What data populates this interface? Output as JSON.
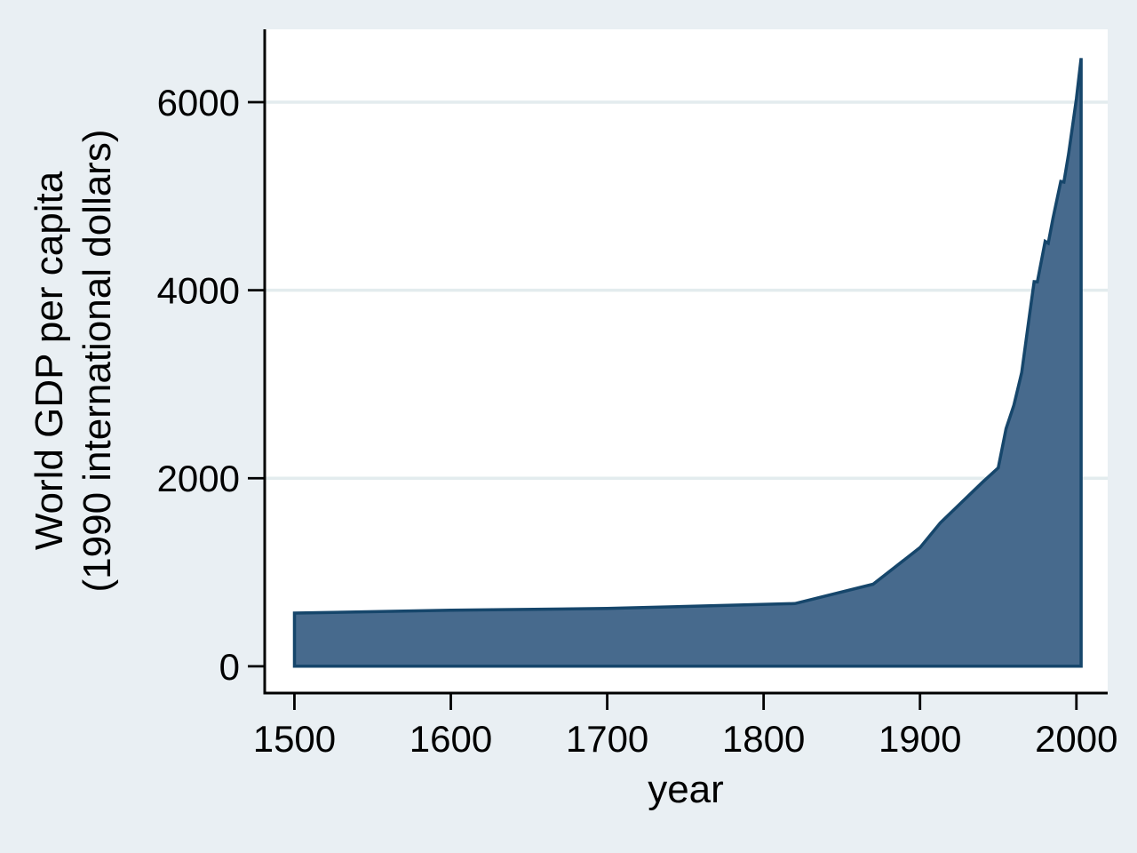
{
  "chart_data": {
    "type": "area",
    "title": "",
    "xlabel": "year",
    "ylabel_lines": [
      "World GDP per capita",
      "(1990 international dollars)"
    ],
    "x": [
      1500,
      1600,
      1700,
      1820,
      1870,
      1900,
      1913,
      1940,
      1950,
      1955,
      1960,
      1965,
      1970,
      1973,
      1975,
      1980,
      1982,
      1985,
      1990,
      1992,
      1995,
      2000,
      2003
    ],
    "series": [
      {
        "name": "World GDP per capita (1990 international dollars)",
        "values": [
          566,
          596,
          615,
          667,
          873,
          1262,
          1526,
          1958,
          2111,
          2528,
          2777,
          3124,
          3736,
          4091,
          4088,
          4520,
          4500,
          4764,
          5157,
          5150,
          5450,
          6038,
          6469
        ]
      }
    ],
    "baseline": 0,
    "x_ticks": [
      "1500",
      "1600",
      "1700",
      "1800",
      "1900",
      "2000"
    ],
    "y_ticks": [
      "0",
      "2000",
      "4000",
      "6000"
    ],
    "y_gridlines": [
      2000,
      4000,
      6000
    ],
    "xlim": [
      1481,
      2020
    ],
    "ylim": [
      -285,
      6775
    ],
    "grid": true,
    "legend": "none",
    "colors": {
      "background": "#e9eff3",
      "plot_background": "#ffffff",
      "gridline": "#e3ecee",
      "axis": "#000000",
      "area_fill": "#476a8d",
      "area_stroke": "#16466b"
    }
  }
}
